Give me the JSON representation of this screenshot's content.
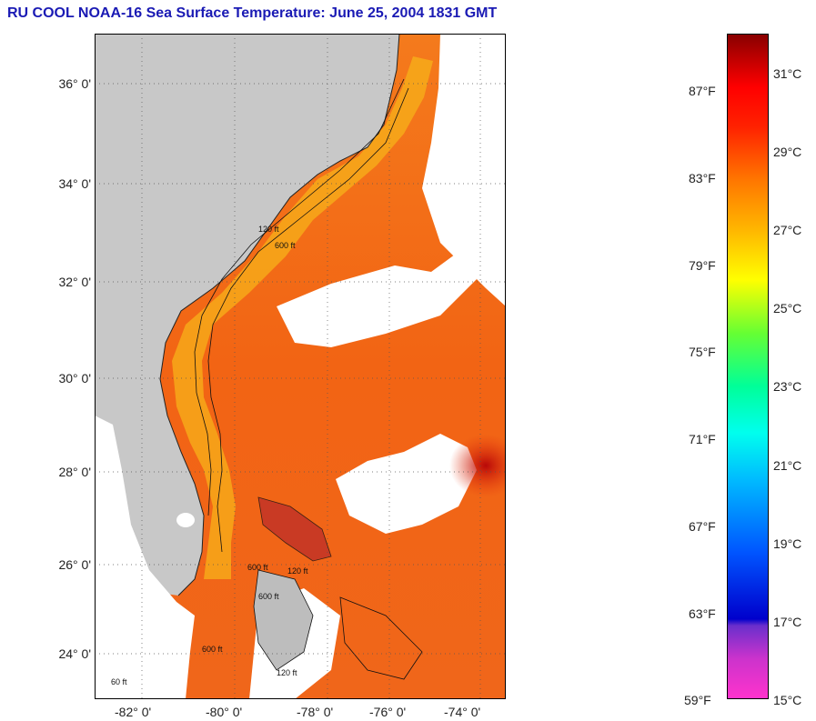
{
  "title": "RU COOL  NOAA-16  Sea Surface Temperature:  June 25, 2004 1831 GMT",
  "map": {
    "lat_ticks": [
      "36° 0'",
      "34° 0'",
      "32° 0'",
      "30° 0'",
      "28° 0'",
      "26° 0'",
      "24° 0'"
    ],
    "lon_ticks": [
      "-82° 0'",
      "-80° 0'",
      "-78° 0'",
      "-76° 0'",
      "-74° 0'"
    ],
    "contour_labels": [
      "600 ft",
      "120 ft",
      "600 ft",
      "120 ft",
      "600 ft",
      "120 ft",
      "600 ft",
      "60 ft"
    ],
    "colors": {
      "land": "#c8c8c8",
      "cloud": "#ffffff",
      "warm": "#f26a14",
      "hot": "#c81010",
      "coastal": "#f7c21a"
    }
  },
  "colorbar": {
    "fahrenheit": [
      "87°F",
      "83°F",
      "79°F",
      "75°F",
      "71°F",
      "67°F",
      "63°F",
      "59°F"
    ],
    "celsius": [
      "31°C",
      "29°C",
      "27°C",
      "25°C",
      "23°C",
      "21°C",
      "19°C",
      "17°C",
      "15°C"
    ],
    "gradient": [
      "#ff33cc",
      "#9933cc",
      "#0000cc",
      "#0066ff",
      "#00ccff",
      "#00ffcc",
      "#33ff66",
      "#99ff33",
      "#ffff00",
      "#ffcc00",
      "#ff8800",
      "#ff3300",
      "#ff0000",
      "#cc0000",
      "#880000"
    ]
  }
}
